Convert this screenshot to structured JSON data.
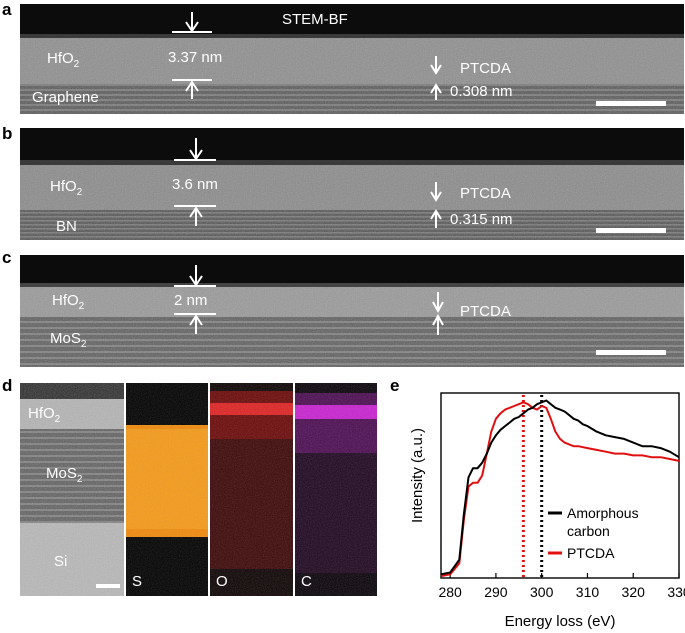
{
  "panels": {
    "a": {
      "label": "a",
      "title": "STEM-BF",
      "layer": "HfO",
      "layer_sub": "2",
      "measure": "3.37 nm",
      "molecule": "PTCDA",
      "spacing": "0.308 nm",
      "substrate": "Graphene"
    },
    "b": {
      "label": "b",
      "layer": "HfO",
      "layer_sub": "2",
      "measure": "3.6 nm",
      "molecule": "PTCDA",
      "spacing": "0.315 nm",
      "substrate": "BN"
    },
    "c": {
      "label": "c",
      "layer": "HfO",
      "layer_sub": "2",
      "measure": "2 nm",
      "molecule": "PTCDA",
      "substrate": "MoS",
      "substrate_sub": "2"
    },
    "d": {
      "label": "d",
      "layer": "HfO",
      "layer_sub": "2",
      "middle": "MoS",
      "middle_sub": "2",
      "bottom": "Si",
      "maps": [
        "S",
        "O",
        "C"
      ]
    },
    "e": {
      "label": "e"
    }
  },
  "colors": {
    "S": "#f58a0a",
    "O": "#e01818",
    "C": "#d020d8",
    "black_series": "#000000",
    "red_series": "#e01010"
  },
  "chart_data": {
    "type": "line",
    "xlabel": "Energy loss (eV)",
    "ylabel": "Intensity (a.u.)",
    "xlim": [
      278,
      330
    ],
    "x_ticks": [
      280,
      290,
      300,
      310,
      320,
      330
    ],
    "y_ticks_shown": false,
    "vertical_lines": [
      {
        "x": 296,
        "color": "red",
        "style": "dotted"
      },
      {
        "x": 300,
        "color": "black",
        "style": "dotted"
      }
    ],
    "series": [
      {
        "name": "Amorphous carbon",
        "color": "#000000",
        "x": [
          278,
          280,
          282,
          283,
          284,
          285,
          286,
          287,
          288,
          289,
          290,
          291,
          292,
          293,
          294,
          295,
          296,
          297,
          298,
          299,
          300,
          301,
          302,
          303,
          304,
          305,
          306,
          307,
          308,
          309,
          310,
          312,
          314,
          316,
          318,
          320,
          322,
          324,
          326,
          328,
          330
        ],
        "y": [
          0.02,
          0.03,
          0.1,
          0.35,
          0.55,
          0.6,
          0.6,
          0.63,
          0.68,
          0.74,
          0.78,
          0.81,
          0.83,
          0.85,
          0.87,
          0.88,
          0.9,
          0.92,
          0.93,
          0.95,
          0.96,
          0.97,
          0.95,
          0.93,
          0.92,
          0.91,
          0.89,
          0.87,
          0.86,
          0.84,
          0.83,
          0.8,
          0.78,
          0.77,
          0.76,
          0.74,
          0.72,
          0.72,
          0.71,
          0.69,
          0.66
        ]
      },
      {
        "name": "PTCDA",
        "color": "#e01010",
        "x": [
          278,
          280,
          282,
          283,
          284,
          285,
          286,
          287,
          288,
          289,
          290,
          291,
          292,
          293,
          294,
          295,
          296,
          297,
          298,
          299,
          300,
          301,
          302,
          303,
          304,
          305,
          306,
          307,
          308,
          310,
          312,
          314,
          316,
          318,
          320,
          322,
          324,
          326,
          328,
          330
        ],
        "y": [
          0.01,
          0.02,
          0.08,
          0.32,
          0.5,
          0.52,
          0.52,
          0.56,
          0.68,
          0.8,
          0.87,
          0.9,
          0.92,
          0.93,
          0.94,
          0.95,
          0.96,
          0.95,
          0.93,
          0.92,
          0.94,
          0.93,
          0.87,
          0.8,
          0.76,
          0.74,
          0.73,
          0.72,
          0.72,
          0.71,
          0.7,
          0.69,
          0.68,
          0.68,
          0.67,
          0.67,
          0.66,
          0.66,
          0.65,
          0.64
        ]
      }
    ]
  }
}
